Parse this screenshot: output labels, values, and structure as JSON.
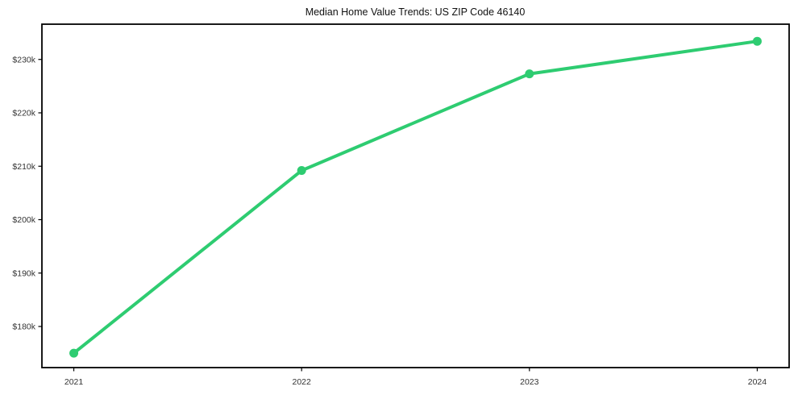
{
  "title": "Median Home Value Trends: US ZIP Code 46140",
  "chart_data": {
    "type": "line",
    "title": "Median Home Value Trends: US ZIP Code 46140",
    "xlabel": "",
    "ylabel": "",
    "x": [
      2021,
      2022,
      2023,
      2024
    ],
    "x_tick_labels": [
      "2021",
      "2022",
      "2023",
      "2024"
    ],
    "series": [
      {
        "name": "Median Home Value",
        "values": [
          175000,
          209200,
          227300,
          233400
        ]
      }
    ],
    "y_ticks": [
      180000,
      190000,
      200000,
      210000,
      220000,
      230000
    ],
    "y_tick_labels": [
      "$180k",
      "$190k",
      "$200k",
      "$210k",
      "$220k",
      "$230k"
    ],
    "xlim": [
      2020.86,
      2024.14
    ],
    "ylim": [
      172300,
      236600
    ],
    "grid": false,
    "legend": "none",
    "marker": "circle",
    "marker_radius": 5.5,
    "line_width": 4,
    "colors": {
      "line": "#2ecc71",
      "axis": "#000000",
      "tick_label": "#333333",
      "title": "#111111",
      "background": "#ffffff"
    }
  }
}
